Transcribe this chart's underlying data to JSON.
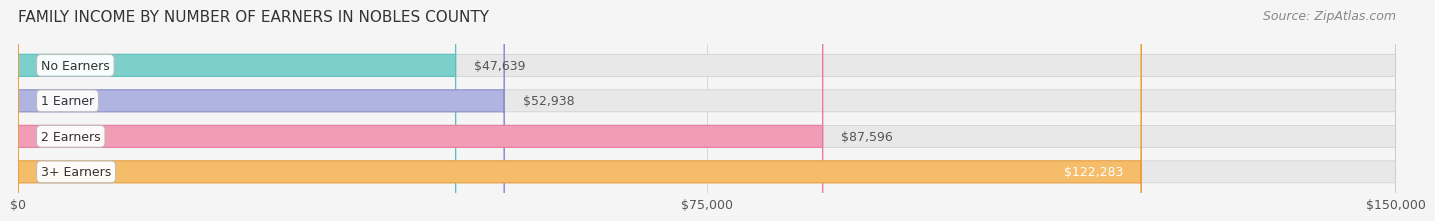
{
  "title": "FAMILY INCOME BY NUMBER OF EARNERS IN NOBLES COUNTY",
  "source": "Source: ZipAtlas.com",
  "categories": [
    "No Earners",
    "1 Earner",
    "2 Earners",
    "3+ Earners"
  ],
  "values": [
    47639,
    52938,
    87596,
    122283
  ],
  "labels": [
    "$47,639",
    "$52,938",
    "$87,596",
    "$122,283"
  ],
  "bar_colors": [
    "#7dcfcb",
    "#b0b4e0",
    "#f09db5",
    "#f5bc6a"
  ],
  "bar_edge_colors": [
    "#5bbfba",
    "#9090cc",
    "#e87aa0",
    "#e8a040"
  ],
  "background_color": "#f5f5f5",
  "bar_bg_color": "#e8e8e8",
  "xlim": [
    0,
    150000
  ],
  "xticks": [
    0,
    75000,
    150000
  ],
  "xticklabels": [
    "$0",
    "$75,000",
    "$150,000"
  ],
  "title_fontsize": 11,
  "source_fontsize": 9,
  "label_fontsize": 9,
  "tick_fontsize": 9
}
